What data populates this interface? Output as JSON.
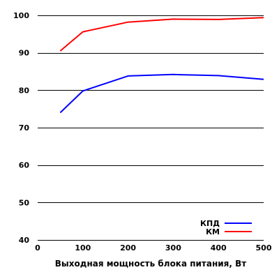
{
  "chart_data": {
    "type": "line",
    "title": "",
    "xlabel": "Выходная мощность блока питания, Вт",
    "ylabel": "",
    "xlim": [
      0,
      500
    ],
    "ylim": [
      40,
      100
    ],
    "x_ticks": [
      0,
      100,
      200,
      300,
      400,
      500
    ],
    "y_ticks": [
      40,
      50,
      60,
      70,
      80,
      90,
      100
    ],
    "grid": "horizontal",
    "legend_position": "bottom-right",
    "series": [
      {
        "name": "КПД",
        "color": "#0000ff",
        "x": [
          50,
          100,
          200,
          300,
          400,
          500
        ],
        "values": [
          74,
          79.8,
          83.8,
          84.2,
          83.9,
          82.9
        ]
      },
      {
        "name": "КМ",
        "color": "#ff0000",
        "x": [
          50,
          100,
          200,
          300,
          400,
          500
        ],
        "values": [
          90.5,
          95.6,
          98.2,
          99.0,
          98.9,
          99.4
        ]
      }
    ]
  }
}
